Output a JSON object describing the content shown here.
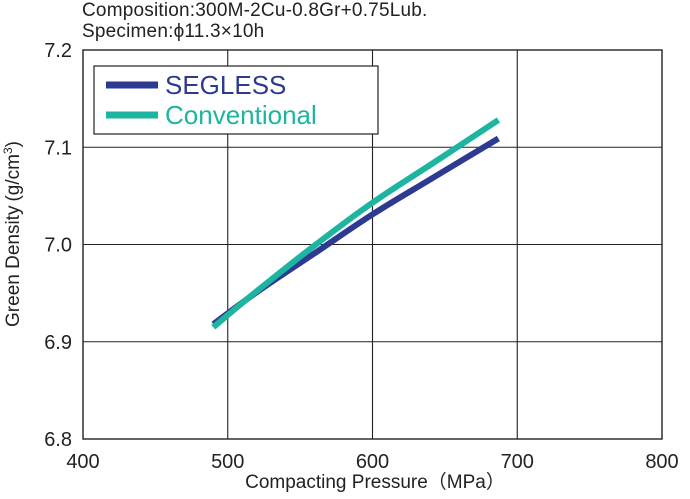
{
  "chart_data": {
    "type": "line",
    "title_lines": [
      "Composition:300M-2Cu-0.8Gr+0.75Lub.",
      "Specimen:ϕ11.3×10h"
    ],
    "xlabel": "Compacting Pressure（MPa）",
    "ylabel_main": "Green Density",
    "ylabel_unit": "(g/cm",
    "ylabel_sup": "3",
    "ylabel_close": ")",
    "xlim": [
      400,
      800
    ],
    "ylim": [
      6.8,
      7.2
    ],
    "x_ticks": [
      400,
      500,
      600,
      700,
      800
    ],
    "x_tick_labels": [
      "400",
      "500",
      "600",
      "700",
      "800"
    ],
    "y_ticks": [
      6.8,
      6.9,
      7.0,
      7.1,
      7.2
    ],
    "y_tick_labels": [
      "6.8",
      "6.9",
      "7.0",
      "7.1",
      "7.2"
    ],
    "grid": true,
    "legend_position": "top-left",
    "series": [
      {
        "name": "SEGLESS",
        "color": "#2e3a91",
        "x": [
          490,
          520,
          560,
          600,
          640,
          687
        ],
        "y": [
          6.918,
          6.951,
          6.991,
          7.031,
          7.067,
          7.109
        ]
      },
      {
        "name": "Conventional",
        "color": "#1db5a0",
        "x": [
          490,
          520,
          560,
          600,
          640,
          687
        ],
        "y": [
          6.915,
          6.952,
          6.999,
          7.043,
          7.082,
          7.128
        ]
      }
    ]
  }
}
